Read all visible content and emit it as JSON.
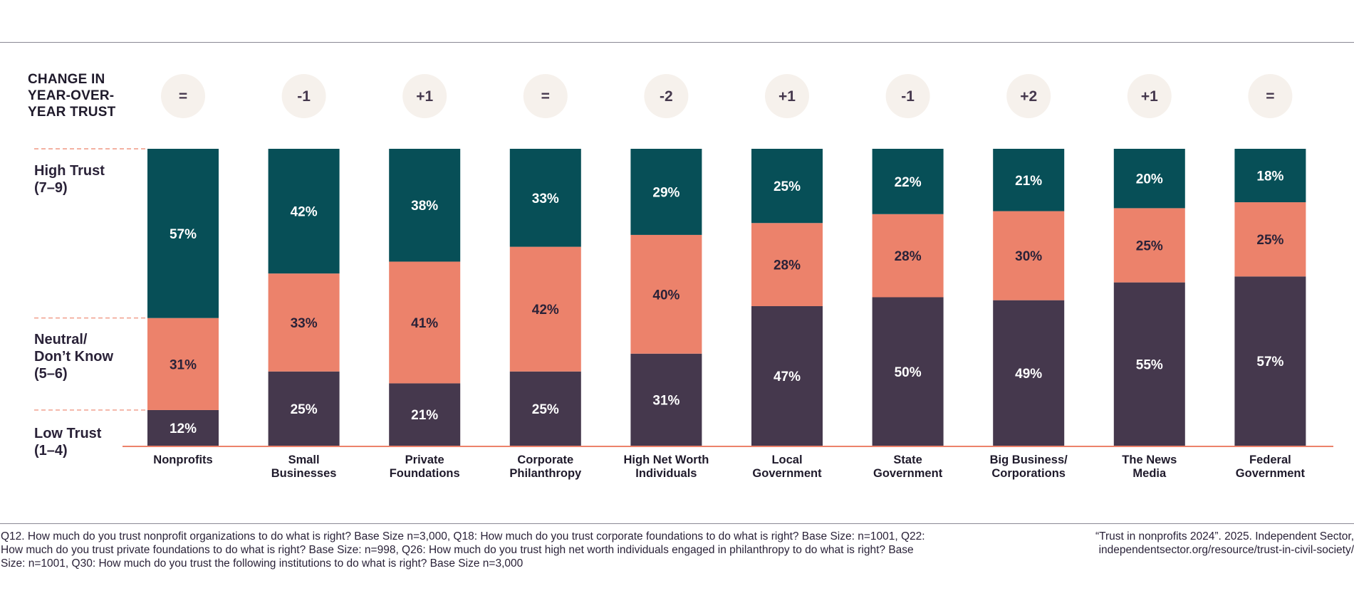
{
  "change_title": "CHANGE IN\nYEAR-OVER-\nYEAR TRUST",
  "band_labels": {
    "high": "High Trust\n(7–9)",
    "neutral": "Neutral/\nDon’t Know\n(5–6)",
    "low": "Low Trust\n(1–4)"
  },
  "colors": {
    "high": "#074f57",
    "neutral": "#ec826b",
    "low": "#45384d",
    "badge": "#f6f1ec",
    "baseline": "#ec826b"
  },
  "chart_data": {
    "type": "bar",
    "stacked": true,
    "categories": [
      "Nonprofits",
      "Small Businesses",
      "Private Foundations",
      "Corporate Philanthropy",
      "High Net Worth Individuals",
      "Local Government",
      "State Government",
      "Big Business/ Corporations",
      "The News Media",
      "Federal Government"
    ],
    "category_lines": [
      [
        "Nonprofits"
      ],
      [
        "Small",
        "Businesses"
      ],
      [
        "Private",
        "Foundations"
      ],
      [
        "Corporate",
        "Philanthropy"
      ],
      [
        "High Net Worth",
        "Individuals"
      ],
      [
        "Local",
        "Government"
      ],
      [
        "State",
        "Government"
      ],
      [
        "Big Business/",
        "Corporations"
      ],
      [
        "The News",
        "Media"
      ],
      [
        "Federal",
        "Government"
      ]
    ],
    "series": [
      {
        "key": "low",
        "values": [
          12,
          25,
          21,
          25,
          31,
          47,
          50,
          49,
          55,
          57
        ]
      },
      {
        "key": "neutral",
        "values": [
          31,
          33,
          41,
          42,
          40,
          28,
          28,
          30,
          25,
          25
        ]
      },
      {
        "key": "high",
        "values": [
          57,
          42,
          38,
          33,
          29,
          25,
          22,
          21,
          20,
          18
        ]
      }
    ],
    "change": [
      "=",
      "-1",
      "+1",
      "=",
      "-2",
      "+1",
      "-1",
      "+2",
      "+1",
      "="
    ],
    "ylim": [
      0,
      100
    ],
    "value_suffix": "%"
  },
  "footnote": "Q12. How much do you trust nonprofit organizations to do what is right? Base Size n=3,000, Q18: How much do you trust corporate foundations to do what is right? Base Size: n=1001, Q22: How much do you trust private foundations to do what is right? Base Size: n=998, Q26: How much do you trust high net worth individuals engaged in philanthropy to do what is right? Base Size: n=1001, Q30: How much do you trust the following institutions to do what is right? Base Size n=3,000",
  "source": "“Trust in nonprofits 2024”. 2025. Independent Sector, independentsector.org/resource/trust-in-civil-society/"
}
